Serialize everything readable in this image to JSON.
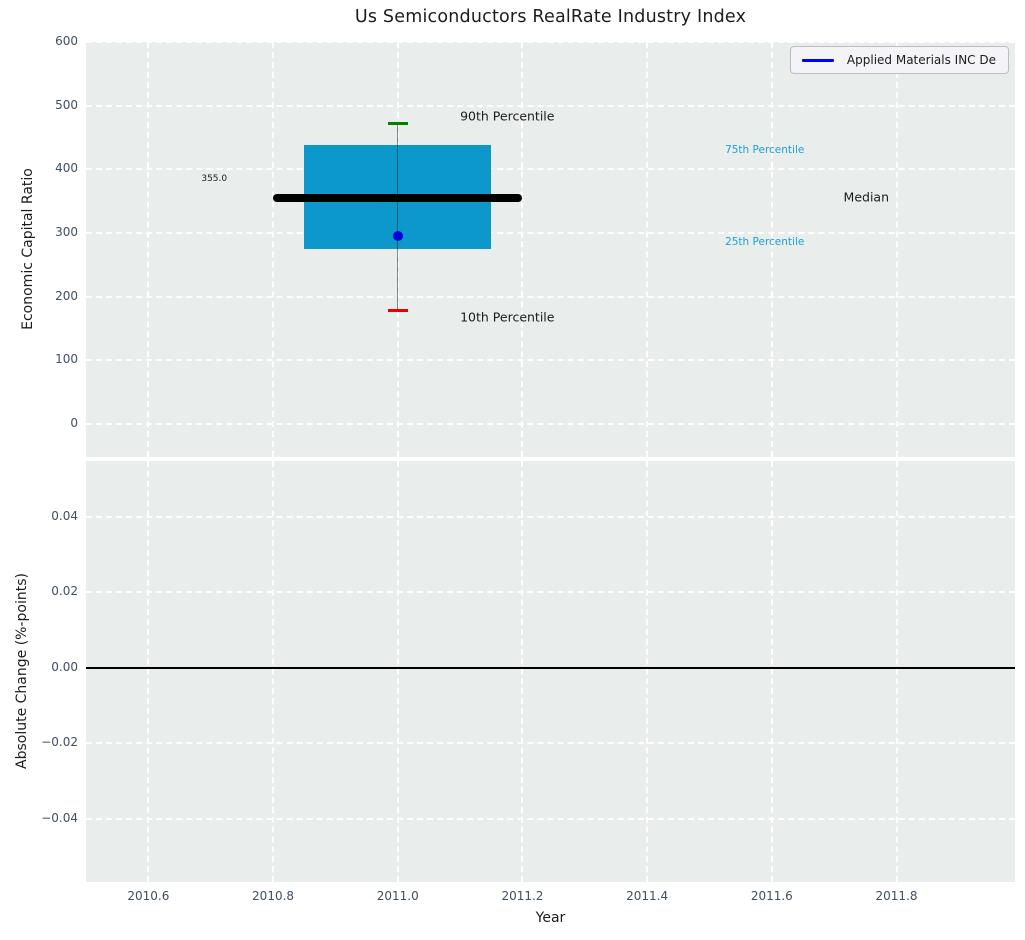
{
  "title": "Us Semiconductors RealRate Industry Index",
  "legend": {
    "series_label": "Applied Materials INC De",
    "line_color": "#0000ff"
  },
  "style": {
    "axes_background": "#e9eeed",
    "grid_color": "#ffffff",
    "tick_color": "#3f4e61",
    "text_color": "#1c1c1c"
  },
  "chart_data": [
    {
      "id": "top",
      "type": "box",
      "title": "Us Semiconductors RealRate Industry Index",
      "ylabel": "Economic Capital Ratio",
      "xlim": [
        2010.5,
        2011.99
      ],
      "ylim": [
        -52,
        600
      ],
      "yticks": [
        {
          "value": 0,
          "label": "0"
        },
        {
          "value": 100,
          "label": "100"
        },
        {
          "value": 200,
          "label": "200"
        },
        {
          "value": 300,
          "label": "300"
        },
        {
          "value": 400,
          "label": "400"
        },
        {
          "value": 500,
          "label": "500"
        },
        {
          "value": 600,
          "label": "600"
        }
      ],
      "xticks": [
        {
          "value": 2010.6
        },
        {
          "value": 2010.8
        },
        {
          "value": 2011.0
        },
        {
          "value": 2011.2
        },
        {
          "value": 2011.4
        },
        {
          "value": 2011.6
        },
        {
          "value": 2011.8
        }
      ],
      "show_x_labels": false,
      "box": {
        "x_center": 2011.0,
        "box_x": [
          2010.85,
          2011.15
        ],
        "median_x": [
          2010.8,
          2011.2
        ],
        "p10": 178,
        "q25": 274,
        "median": 355,
        "q75": 438,
        "p90": 472,
        "median_value_label": "355.0",
        "colors": {
          "box": "#0c98cb",
          "median": "#000000",
          "p90_cap": "#008000",
          "p10_cap": "#ee0000",
          "whisker": "rgba(40,40,40,0.55)"
        }
      },
      "company_point": {
        "series": "Applied Materials INC De",
        "x": 2011.0,
        "y": 295,
        "color": "#0000dd"
      },
      "annotations": [
        {
          "text": "90th Percentile",
          "x": 2011.1,
          "y": 484,
          "color": "#1c1c1c",
          "size": 12.5
        },
        {
          "text": "10th Percentile",
          "x": 2011.1,
          "y": 168,
          "color": "#1c1c1c",
          "size": 12.5
        },
        {
          "text": "355.0",
          "x": 2010.685,
          "y": 384,
          "color": "#1c1c1c",
          "size": 9
        },
        {
          "text": "75th Percentile",
          "x": 2011.525,
          "y": 430,
          "color": "#219fd3",
          "size": 10.5
        },
        {
          "text": "25th Percentile",
          "x": 2011.525,
          "y": 286,
          "color": "#219fd3",
          "size": 10.5
        },
        {
          "text": "Median",
          "x": 2011.715,
          "y": 356,
          "color": "#1c1c1c",
          "size": 12.5
        }
      ]
    },
    {
      "id": "bottom",
      "type": "line",
      "ylabel": "Absolute Change (%-points)",
      "xlabel": "Year",
      "xlim": [
        2010.5,
        2011.99
      ],
      "ylim": [
        -0.0567,
        0.0548
      ],
      "yticks": [
        {
          "value": 0.04,
          "label": "0.04"
        },
        {
          "value": 0.02,
          "label": "0.02"
        },
        {
          "value": 0.0,
          "label": "0.00"
        },
        {
          "value": -0.02,
          "label": "−0.02"
        },
        {
          "value": -0.04,
          "label": "−0.04"
        }
      ],
      "xticks": [
        {
          "value": 2010.6,
          "label": "2010.6"
        },
        {
          "value": 2010.8,
          "label": "2010.8"
        },
        {
          "value": 2011.0,
          "label": "2011.0"
        },
        {
          "value": 2011.2,
          "label": "2011.2"
        },
        {
          "value": 2011.4,
          "label": "2011.4"
        },
        {
          "value": 2011.6,
          "label": "2011.6"
        },
        {
          "value": 2011.8,
          "label": "2011.8"
        }
      ],
      "show_x_labels": true,
      "hline": {
        "y": 0.0,
        "color": "#000000"
      }
    }
  ]
}
